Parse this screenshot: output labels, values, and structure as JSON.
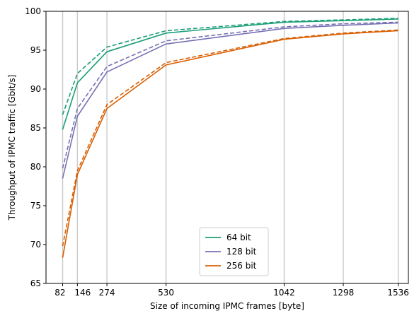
{
  "chart_data": {
    "type": "line",
    "xlabel": "Size of incoming IPMC frames [byte]",
    "ylabel": "Throughput of IPMC traffic [Gbit/s]",
    "xlim": [
      10,
      1580
    ],
    "ylim": [
      65,
      100
    ],
    "x_ticks": [
      82,
      146,
      274,
      530,
      1042,
      1298,
      1536
    ],
    "x_tick_labels": [
      "82",
      "146",
      "274",
      "530",
      "1042",
      "1298",
      "1536"
    ],
    "y_ticks": [
      65,
      70,
      75,
      80,
      85,
      90,
      95,
      100
    ],
    "y_tick_labels": [
      "65",
      "70",
      "75",
      "80",
      "85",
      "90",
      "95",
      "100"
    ],
    "vertical_gridlines_at_x_ticks": true,
    "legend_placement": "bottom-center",
    "x": [
      82,
      146,
      274,
      530,
      1042,
      1298,
      1536
    ],
    "series": [
      {
        "name": "64 bit",
        "color": "#1b9e77",
        "style": "solid",
        "values": [
          84.8,
          90.8,
          94.8,
          97.2,
          98.6,
          98.8,
          99.0
        ]
      },
      {
        "name": "",
        "color": "#1b9e77",
        "style": "dashed",
        "values": [
          86.7,
          92.0,
          95.4,
          97.5,
          98.7,
          98.9,
          99.1
        ]
      },
      {
        "name": "128 bit",
        "color": "#7570b3",
        "style": "solid",
        "values": [
          78.5,
          86.5,
          92.2,
          95.8,
          97.8,
          98.2,
          98.5
        ]
      },
      {
        "name": "",
        "color": "#7570b3",
        "style": "dashed",
        "values": [
          79.8,
          87.5,
          92.9,
          96.2,
          98.0,
          98.4,
          98.6
        ]
      },
      {
        "name": "256 bit",
        "color": "#d95f02",
        "style": "solid",
        "values": [
          68.3,
          79.0,
          87.5,
          93.1,
          96.4,
          97.1,
          97.5
        ]
      },
      {
        "name": "",
        "color": "#d95f02",
        "style": "dashed",
        "values": [
          69.8,
          79.5,
          88.0,
          93.4,
          96.5,
          97.2,
          97.6
        ]
      }
    ]
  }
}
